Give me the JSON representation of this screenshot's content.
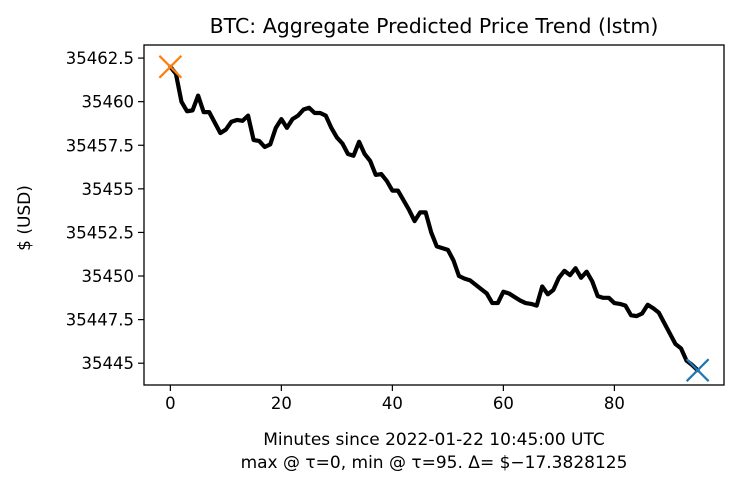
{
  "chart_data": {
    "type": "line",
    "title": "BTC: Aggregate Predicted Price Trend (lstm)",
    "xlabel": "Minutes since 2022-01-22 10:45:00 UTC",
    "xlabel2": "max @ τ=0, min @ τ=95. Δ= $−17.3828125",
    "ylabel": "$ (USD)",
    "xlim": [
      -4.75,
      99.75
    ],
    "ylim": [
      35443.75,
      35463.25
    ],
    "x_ticks": [
      0,
      20,
      40,
      60,
      80
    ],
    "x_tick_labels": [
      "0",
      "20",
      "40",
      "60",
      "80"
    ],
    "y_ticks": [
      35445,
      35447.5,
      35450,
      35452.5,
      35455,
      35457.5,
      35460,
      35462.5
    ],
    "y_tick_labels": [
      "35445",
      "35447.5",
      "35450",
      "35452.5",
      "35455",
      "35457.5",
      "35460",
      "35462.5"
    ],
    "series": [
      {
        "name": "aggregate prediction",
        "color": "#000000",
        "x": [
          0,
          1,
          2,
          3,
          4,
          5,
          6,
          7,
          8,
          9,
          10,
          11,
          12,
          13,
          14,
          15,
          16,
          17,
          18,
          19,
          20,
          21,
          22,
          23,
          24,
          25,
          26,
          27,
          28,
          29,
          30,
          31,
          32,
          33,
          34,
          35,
          36,
          37,
          38,
          39,
          40,
          41,
          42,
          43,
          44,
          45,
          46,
          47,
          48,
          49,
          50,
          51,
          52,
          53,
          54,
          55,
          56,
          57,
          58,
          59,
          60,
          61,
          62,
          63,
          64,
          65,
          66,
          67,
          68,
          69,
          70,
          71,
          72,
          73,
          74,
          75,
          76,
          77,
          78,
          79,
          80,
          81,
          82,
          83,
          84,
          85,
          86,
          87,
          88,
          89,
          90,
          91,
          92,
          93,
          94,
          95
        ],
        "y": [
          35462.0,
          35461.6,
          35460.0,
          35459.45,
          35459.5,
          35460.35,
          35459.4,
          35459.4,
          35458.8,
          35458.2,
          35458.4,
          35458.85,
          35458.95,
          35458.9,
          35459.2,
          35457.8,
          35457.75,
          35457.4,
          35457.55,
          35458.5,
          35459.0,
          35458.5,
          35459.0,
          35459.2,
          35459.55,
          35459.65,
          35459.35,
          35459.35,
          35459.2,
          35458.5,
          35457.95,
          35457.6,
          35457.0,
          35456.9,
          35457.7,
          35457.0,
          35456.6,
          35455.8,
          35455.85,
          35455.45,
          35454.9,
          35454.9,
          35454.35,
          35453.8,
          35453.15,
          35453.65,
          35453.65,
          35452.5,
          35451.7,
          35451.6,
          35451.5,
          35450.9,
          35450.0,
          35449.85,
          35449.75,
          35449.5,
          35449.25,
          35449.0,
          35448.45,
          35448.45,
          35449.1,
          35449.0,
          35448.8,
          35448.6,
          35448.45,
          35448.4,
          35448.3,
          35449.4,
          35448.95,
          35449.2,
          35449.9,
          35450.3,
          35450.05,
          35450.45,
          35449.9,
          35450.25,
          35449.7,
          35448.85,
          35448.75,
          35448.75,
          35448.45,
          35448.4,
          35448.3,
          35447.75,
          35447.7,
          35447.85,
          35448.35,
          35448.15,
          35447.9,
          35447.3,
          35446.7,
          35446.1,
          35445.85,
          35445.15,
          35444.9,
          35444.6
        ]
      }
    ],
    "markers": [
      {
        "name": "max",
        "x": 0,
        "y": 35462.0,
        "color": "#ff7f0e"
      },
      {
        "name": "min",
        "x": 95,
        "y": 35444.6,
        "color": "#1f77b4"
      }
    ]
  }
}
